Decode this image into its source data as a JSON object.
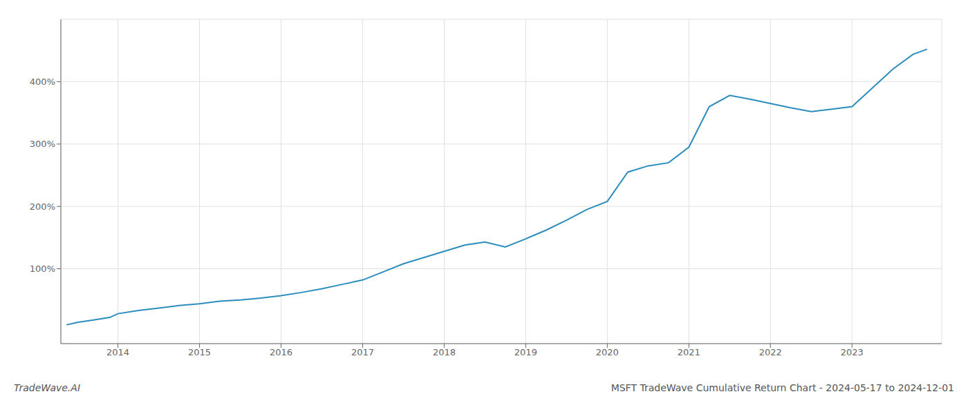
{
  "chart_data": {
    "type": "line",
    "title": "MSFT TradeWave Cumulative Return Chart - 2024-05-17 to 2024-12-01",
    "annotations": [
      "TradeWave.AI"
    ],
    "x": [
      2013.37,
      2013.5,
      2013.7,
      2013.9,
      2014.0,
      2014.25,
      2014.5,
      2014.75,
      2015.0,
      2015.25,
      2015.5,
      2015.75,
      2016.0,
      2016.25,
      2016.5,
      2016.75,
      2017.0,
      2017.25,
      2017.5,
      2017.75,
      2018.0,
      2018.25,
      2018.5,
      2018.75,
      2019.0,
      2019.25,
      2019.5,
      2019.75,
      2020.0,
      2020.25,
      2020.5,
      2020.75,
      2021.0,
      2021.25,
      2021.5,
      2021.75,
      2022.0,
      2022.25,
      2022.5,
      2022.75,
      2023.0,
      2023.25,
      2023.5,
      2023.75,
      2023.92
    ],
    "values": [
      10,
      14,
      18,
      22,
      28,
      33,
      37,
      41,
      44,
      48,
      50,
      53,
      57,
      62,
      68,
      75,
      82,
      95,
      108,
      118,
      128,
      138,
      143,
      135,
      148,
      162,
      178,
      195,
      208,
      255,
      265,
      270,
      295,
      360,
      378,
      372,
      365,
      358,
      352,
      356,
      360,
      390,
      420,
      444,
      452
    ],
    "color": "#2b8cbe",
    "xlim": [
      2013.3,
      2024.1
    ],
    "xticks": [
      2014,
      2015,
      2016,
      2017,
      2018,
      2019,
      2020,
      2021,
      2022,
      2023
    ],
    "ylim": [
      -20,
      500
    ],
    "yticks": [
      {
        "value": 100,
        "label": "100%"
      },
      {
        "value": 200,
        "label": "200%"
      },
      {
        "value": 300,
        "label": "300%"
      },
      {
        "value": 400,
        "label": "400%"
      }
    ],
    "grid": true
  }
}
